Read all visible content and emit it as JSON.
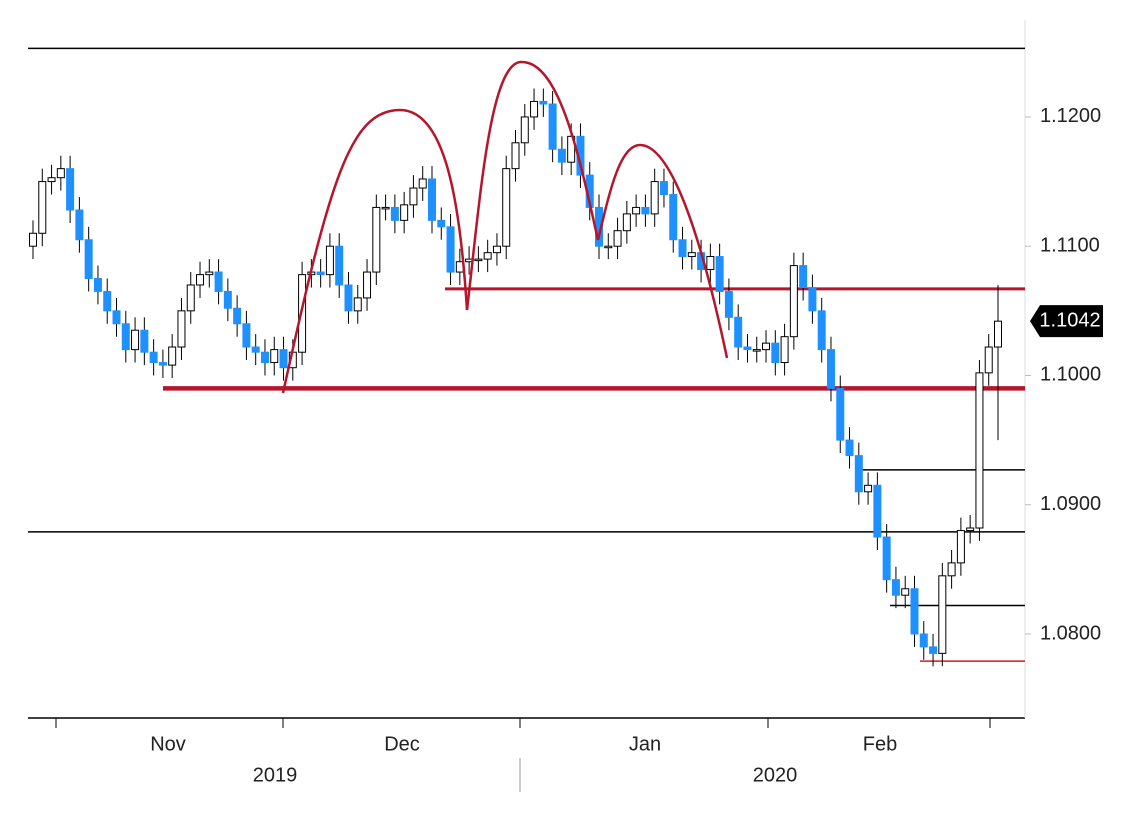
{
  "chart_data": {
    "type": "candlestick",
    "up_color": "#ffffff",
    "down_color": "#1e90ff",
    "wick_color": "#000000",
    "open": [
      1.11,
      1.111,
      1.115,
      1.1153,
      1.116,
      1.1128,
      1.1105,
      1.1075,
      1.1065,
      1.105,
      1.104,
      1.102,
      1.1035,
      1.1018,
      1.101,
      1.1008,
      1.1022,
      1.105,
      1.107,
      1.1078,
      1.108,
      1.1065,
      1.1052,
      1.104,
      1.1022,
      1.1018,
      1.101,
      1.102,
      1.1006,
      1.1018,
      1.1078,
      1.108,
      1.1078,
      1.11,
      1.107,
      1.105,
      1.106,
      1.108,
      1.113,
      1.113,
      1.112,
      1.1132,
      1.1145,
      1.1152,
      1.112,
      1.1115,
      1.108,
      1.1088,
      1.109,
      1.109,
      1.1095,
      1.11,
      1.116,
      1.118,
      1.12,
      1.1212,
      1.121,
      1.1175,
      1.1165,
      1.1185,
      1.1155,
      1.113,
      1.11,
      1.11,
      1.1112,
      1.1125,
      1.113,
      1.1125,
      1.115,
      1.114,
      1.1105,
      1.1092,
      1.1095,
      1.1082,
      1.1092,
      1.1065,
      1.1045,
      1.1022,
      1.102,
      1.102,
      1.1025,
      1.101,
      1.103,
      1.1085,
      1.1068,
      1.105,
      1.102,
      1.099,
      1.095,
      1.0938,
      1.091,
      1.0915,
      1.0875,
      1.0842,
      1.083,
      1.0835,
      1.08,
      1.079,
      1.0785,
      1.0845,
      1.0855,
      1.088,
      1.0882,
      1.1002,
      1.1022
    ],
    "high": [
      1.112,
      1.116,
      1.1163,
      1.117,
      1.117,
      1.1138,
      1.1115,
      1.1085,
      1.1075,
      1.106,
      1.105,
      1.1045,
      1.1045,
      1.1028,
      1.102,
      1.1032,
      1.106,
      1.108,
      1.1088,
      1.109,
      1.109,
      1.1075,
      1.1062,
      1.105,
      1.1032,
      1.1028,
      1.103,
      1.103,
      1.1028,
      1.1088,
      1.109,
      1.109,
      1.111,
      1.111,
      1.108,
      1.107,
      1.109,
      1.114,
      1.114,
      1.114,
      1.1142,
      1.1155,
      1.1162,
      1.1162,
      1.113,
      1.1125,
      1.1098,
      1.11,
      1.11,
      1.1105,
      1.111,
      1.117,
      1.119,
      1.121,
      1.1222,
      1.1222,
      1.122,
      1.1185,
      1.1195,
      1.1195,
      1.1165,
      1.114,
      1.111,
      1.1122,
      1.1135,
      1.114,
      1.114,
      1.116,
      1.116,
      1.115,
      1.1115,
      1.1105,
      1.1105,
      1.1102,
      1.1102,
      1.1075,
      1.1055,
      1.1032,
      1.103,
      1.1035,
      1.1035,
      1.104,
      1.1095,
      1.1095,
      1.1078,
      1.106,
      1.103,
      1.1,
      1.096,
      1.0948,
      1.0925,
      1.0925,
      1.0885,
      1.0852,
      1.0845,
      1.0845,
      1.081,
      1.08,
      1.0855,
      1.0865,
      1.089,
      1.0892,
      1.1012,
      1.1032,
      1.107
    ],
    "low": [
      1.109,
      1.11,
      1.114,
      1.1143,
      1.1118,
      1.1095,
      1.1065,
      1.1055,
      1.104,
      1.103,
      1.101,
      1.101,
      1.1008,
      1.1,
      1.0998,
      1.0998,
      1.1012,
      1.104,
      1.106,
      1.1068,
      1.1055,
      1.1042,
      1.103,
      1.1012,
      1.1008,
      1.1,
      1.1,
      1.0996,
      1.0996,
      1.1008,
      1.1068,
      1.1068,
      1.1068,
      1.106,
      1.104,
      1.104,
      1.105,
      1.107,
      1.112,
      1.111,
      1.111,
      1.1122,
      1.1135,
      1.111,
      1.1105,
      1.107,
      1.107,
      1.1078,
      1.108,
      1.108,
      1.1085,
      1.109,
      1.115,
      1.117,
      1.119,
      1.12,
      1.1165,
      1.1155,
      1.1155,
      1.1145,
      1.112,
      1.109,
      1.109,
      1.109,
      1.1102,
      1.1115,
      1.1115,
      1.1115,
      1.113,
      1.1095,
      1.1082,
      1.1082,
      1.1072,
      1.1072,
      1.1055,
      1.1035,
      1.1012,
      1.101,
      1.101,
      1.101,
      1.1,
      1.1,
      1.102,
      1.1058,
      1.104,
      1.101,
      1.098,
      1.094,
      1.0928,
      1.09,
      1.09,
      1.0865,
      1.0832,
      1.082,
      1.082,
      1.079,
      1.078,
      1.0775,
      1.0775,
      1.0835,
      1.0845,
      1.087,
      1.0872,
      1.0992,
      1.095
    ],
    "close": [
      1.111,
      1.115,
      1.1153,
      1.116,
      1.1128,
      1.1105,
      1.1075,
      1.1065,
      1.105,
      1.104,
      1.102,
      1.1035,
      1.1018,
      1.101,
      1.1008,
      1.1022,
      1.105,
      1.107,
      1.1078,
      1.108,
      1.1065,
      1.1052,
      1.104,
      1.1022,
      1.1018,
      1.101,
      1.102,
      1.1006,
      1.1018,
      1.1078,
      1.108,
      1.1078,
      1.11,
      1.107,
      1.105,
      1.106,
      1.108,
      1.113,
      1.113,
      1.112,
      1.1132,
      1.1145,
      1.1152,
      1.112,
      1.1115,
      1.108,
      1.1088,
      1.109,
      1.109,
      1.1095,
      1.11,
      1.116,
      1.118,
      1.12,
      1.1212,
      1.121,
      1.1175,
      1.1165,
      1.1185,
      1.1155,
      1.113,
      1.11,
      1.11,
      1.1112,
      1.1125,
      1.113,
      1.1125,
      1.115,
      1.114,
      1.1105,
      1.1092,
      1.1095,
      1.1082,
      1.1092,
      1.1065,
      1.1045,
      1.1022,
      1.102,
      1.102,
      1.1025,
      1.101,
      1.103,
      1.1085,
      1.1068,
      1.105,
      1.102,
      1.099,
      1.095,
      1.0938,
      1.091,
      1.0915,
      1.0875,
      1.0842,
      1.083,
      1.0835,
      1.08,
      1.079,
      1.0785,
      1.0845,
      1.0855,
      1.088,
      1.0882,
      1.1002,
      1.1022,
      1.1042
    ],
    "month_labels": [
      "Nov",
      "Dec",
      "Jan",
      "Feb"
    ],
    "year_labels": [
      "2019",
      "2020"
    ],
    "ylim": [
      1.0735,
      1.1275
    ],
    "yticks": [
      {
        "value": 1.08,
        "label": "1.0800"
      },
      {
        "value": 1.09,
        "label": "1.0900"
      },
      {
        "value": 1.1,
        "label": "1.1000"
      },
      {
        "value": 1.11,
        "label": "1.1100"
      },
      {
        "value": 1.12,
        "label": "1.1200"
      }
    ],
    "last_price": 1.1042,
    "levels": [
      {
        "value": 1.1253,
        "color": "#000000"
      },
      {
        "value": 1.1067,
        "color": "#b5162b"
      },
      {
        "value": 1.099,
        "color": "#b5162b"
      },
      {
        "value": 1.0927,
        "color": "#000000"
      },
      {
        "value": 1.0879,
        "color": "#000000"
      },
      {
        "value": 1.0822,
        "color": "#000000"
      },
      {
        "value": 1.0779,
        "color": "#e0141e"
      }
    ]
  }
}
